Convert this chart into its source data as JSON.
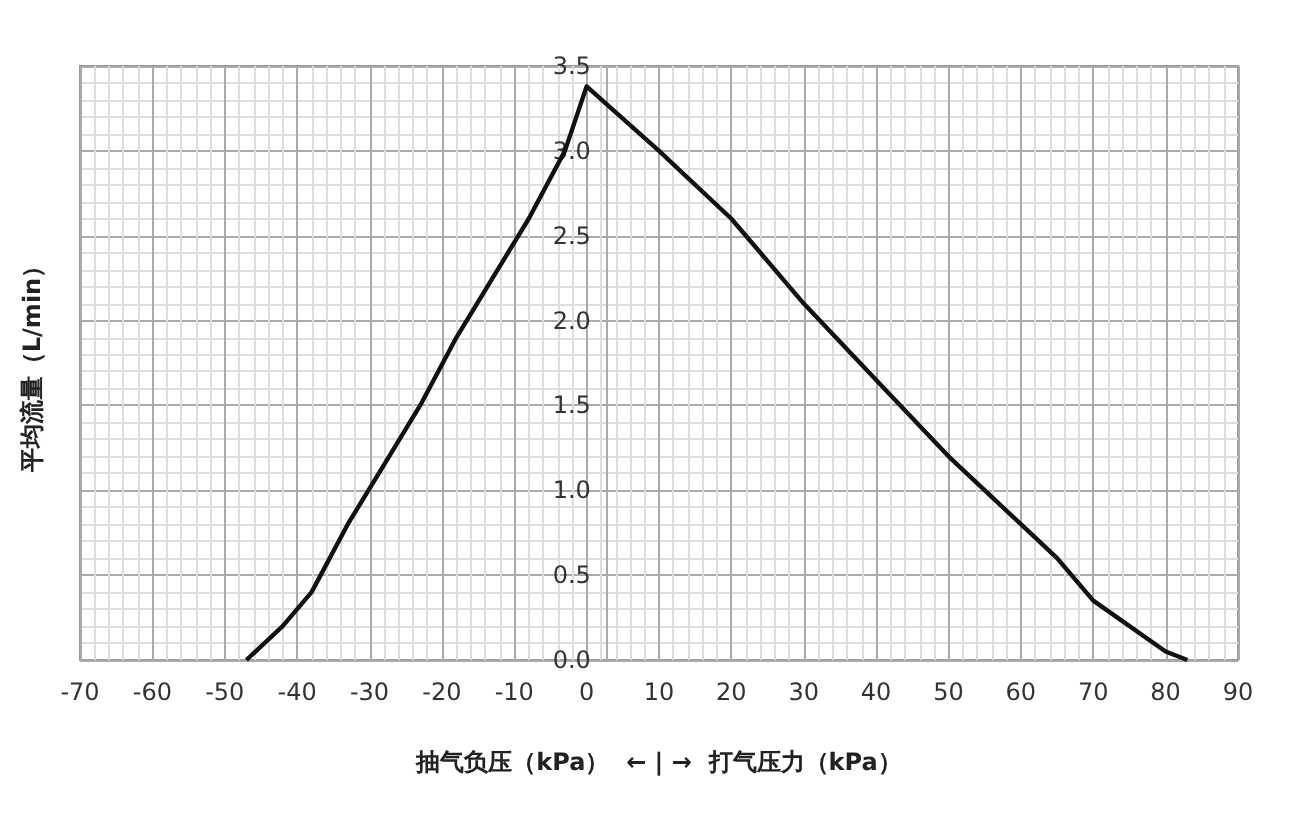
{
  "chart_data": {
    "type": "line",
    "xlabel": "抽气负压（kPa）  ← | →  打气压力（kPa）",
    "ylabel": "平均流量（L/min）",
    "x": [
      -47,
      -42,
      -38,
      -33,
      -28,
      -23,
      -18,
      -13,
      -8,
      -3,
      0,
      10,
      20,
      30,
      40,
      50,
      60,
      65,
      70,
      80,
      83
    ],
    "series": [
      {
        "color": "#111111",
        "values": [
          0,
          0.2,
          0.4,
          0.8,
          1.15,
          1.5,
          1.9,
          2.25,
          2.6,
          3.0,
          3.38,
          3.0,
          2.6,
          2.1,
          1.65,
          1.2,
          0.8,
          0.6,
          0.35,
          0.05,
          0
        ]
      }
    ],
    "xlim": [
      -70,
      90
    ],
    "xticks": [
      -70,
      -60,
      -50,
      -40,
      -30,
      -20,
      -10,
      0,
      10,
      20,
      30,
      40,
      50,
      60,
      70,
      80,
      90
    ],
    "ylim": [
      0,
      3.5
    ],
    "yticks": [
      {
        "value": 0,
        "label": "0.0"
      },
      {
        "value": 0.5,
        "label": "0.5"
      },
      {
        "value": 1,
        "label": "1.0"
      },
      {
        "value": 1.5,
        "label": "1.5"
      },
      {
        "value": 2,
        "label": "2.0"
      },
      {
        "value": 2.5,
        "label": "2.5"
      },
      {
        "value": 3,
        "label": "3.0"
      },
      {
        "value": 3.5,
        "label": "3.5"
      }
    ],
    "grid": true,
    "marker": "none",
    "line_style": "solid"
  }
}
